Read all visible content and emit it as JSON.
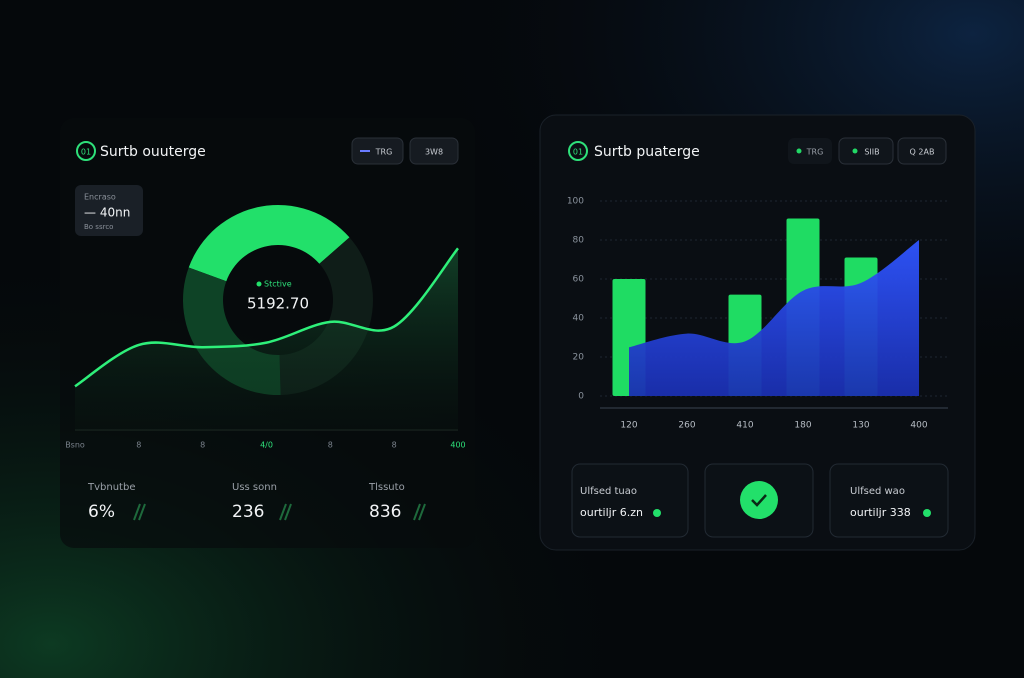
{
  "left_panel": {
    "logo": "01",
    "title": "Surtb ouuterge",
    "buttons": [
      "TRG",
      "3W8"
    ],
    "stat_box": {
      "label": "Encraso",
      "value": "— 40nn",
      "note": "Bo ssrco"
    },
    "stats": [
      {
        "label": "Tvbnutbe",
        "value": "6%"
      },
      {
        "label": "Uss sonn",
        "value": "236"
      },
      {
        "label": "Tlssuto",
        "value": "836"
      }
    ]
  },
  "right_panel": {
    "logo": "01",
    "title": "Surtb puaterge",
    "buttons": [
      "TRG",
      "SIIB",
      "Q 2AB"
    ],
    "cards": [
      {
        "label": "Ulfsed tuao",
        "value": "ourtiljr 6.zn"
      },
      {
        "label": "Ulfsed wao",
        "value": "ourtiljr 338"
      }
    ]
  },
  "chart_data": [
    {
      "type": "donut",
      "center_label": "Stctive",
      "center_value": "5192.70",
      "values": [
        33,
        36,
        31
      ],
      "colors": [
        "#22e06a",
        "#0f1d18",
        "#0e4326"
      ]
    },
    {
      "type": "line",
      "categories": [
        "Bsno",
        "8",
        "8",
        "4/0",
        "8",
        "8",
        "400"
      ],
      "values": [
        19,
        37,
        36,
        38,
        47,
        45,
        79
      ],
      "color": "#2ef07a",
      "ylim": [
        0,
        100
      ]
    },
    {
      "type": "bar_area",
      "categories": [
        "120",
        "260",
        "410",
        "180",
        "130",
        "400"
      ],
      "series": [
        {
          "type": "bar",
          "color": "#1fdc63",
          "values": [
            60,
            null,
            52,
            91,
            71,
            null
          ]
        },
        {
          "type": "area",
          "color": "#2f4cf0",
          "values": [
            25,
            32,
            28,
            54,
            58,
            80
          ]
        }
      ],
      "ylim": [
        0,
        100
      ],
      "yticks": [
        0,
        20,
        40,
        60,
        80,
        100
      ],
      "grid": true
    }
  ]
}
